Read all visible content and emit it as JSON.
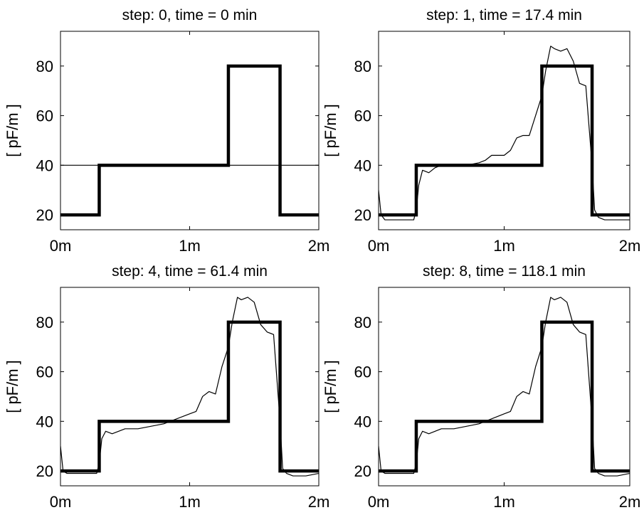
{
  "chart_data": [
    {
      "type": "line",
      "title": "step: 0, time = 0 min",
      "ylabel": "[ pF/m ]",
      "xlabel": "",
      "xlim": [
        0,
        2
      ],
      "ylim": [
        14,
        94
      ],
      "x_ticks": [
        0,
        1,
        2
      ],
      "x_tick_labels": [
        "0m",
        "1m",
        "2m"
      ],
      "y_ticks": [
        20,
        40,
        60,
        80
      ],
      "y_tick_labels": [
        "20",
        "40",
        "60",
        "80"
      ],
      "grid": false,
      "series": [
        {
          "style": "thick",
          "x": [
            0,
            0.3,
            0.3,
            1.3,
            1.3,
            1.7,
            1.7,
            2.0
          ],
          "y": [
            20,
            20,
            40,
            40,
            80,
            80,
            20,
            20
          ]
        },
        {
          "style": "thin",
          "x": [
            0,
            2.0
          ],
          "y": [
            40,
            40
          ]
        }
      ]
    },
    {
      "type": "line",
      "title": "step: 1, time = 17.4 min",
      "ylabel": "[ pF/m ]",
      "xlabel": "",
      "xlim": [
        0,
        2
      ],
      "ylim": [
        14,
        94
      ],
      "x_ticks": [
        0,
        1,
        2
      ],
      "x_tick_labels": [
        "0m",
        "1m",
        "2m"
      ],
      "y_ticks": [
        20,
        40,
        60,
        80
      ],
      "y_tick_labels": [
        "20",
        "40",
        "60",
        "80"
      ],
      "grid": false,
      "series": [
        {
          "style": "thick",
          "x": [
            0,
            0.3,
            0.3,
            1.3,
            1.3,
            1.7,
            1.7,
            2.0
          ],
          "y": [
            20,
            20,
            40,
            40,
            80,
            80,
            20,
            20
          ]
        },
        {
          "style": "thin",
          "x": [
            0,
            0.02,
            0.05,
            0.1,
            0.2,
            0.28,
            0.3,
            0.32,
            0.35,
            0.4,
            0.45,
            0.5,
            0.6,
            0.7,
            0.8,
            0.85,
            0.9,
            0.95,
            1.0,
            1.05,
            1.1,
            1.15,
            1.2,
            1.25,
            1.3,
            1.33,
            1.37,
            1.4,
            1.45,
            1.5,
            1.55,
            1.6,
            1.65,
            1.7,
            1.72,
            1.75,
            1.8,
            1.9,
            2.0
          ],
          "y": [
            30,
            20,
            18,
            18,
            18,
            18,
            22,
            32,
            38,
            37,
            39,
            40,
            40,
            40,
            41,
            42,
            44,
            44,
            44,
            46,
            51,
            52,
            52,
            60,
            68,
            78,
            88,
            87,
            86,
            87,
            82,
            73,
            72,
            40,
            22,
            19,
            18,
            18,
            18
          ]
        }
      ]
    },
    {
      "type": "line",
      "title": "step: 4, time = 61.4 min",
      "ylabel": "[ pF/m ]",
      "xlabel": "",
      "xlim": [
        0,
        2
      ],
      "ylim": [
        14,
        94
      ],
      "x_ticks": [
        0,
        1,
        2
      ],
      "x_tick_labels": [
        "0m",
        "1m",
        "2m"
      ],
      "y_ticks": [
        20,
        40,
        60,
        80
      ],
      "y_tick_labels": [
        "20",
        "40",
        "60",
        "80"
      ],
      "grid": false,
      "series": [
        {
          "style": "thick",
          "x": [
            0,
            0.3,
            0.3,
            1.3,
            1.3,
            1.7,
            1.7,
            2.0
          ],
          "y": [
            20,
            20,
            40,
            40,
            80,
            80,
            20,
            20
          ]
        },
        {
          "style": "thin",
          "x": [
            0,
            0.02,
            0.05,
            0.1,
            0.2,
            0.28,
            0.3,
            0.32,
            0.35,
            0.4,
            0.45,
            0.5,
            0.6,
            0.7,
            0.8,
            0.85,
            0.9,
            0.95,
            1.0,
            1.05,
            1.1,
            1.15,
            1.2,
            1.25,
            1.3,
            1.33,
            1.37,
            1.4,
            1.45,
            1.5,
            1.55,
            1.6,
            1.65,
            1.7,
            1.72,
            1.75,
            1.8,
            1.9,
            2.0
          ],
          "y": [
            30,
            20,
            19,
            19,
            19,
            19,
            23,
            33,
            36,
            35,
            36,
            37,
            37,
            38,
            39,
            40,
            41,
            42,
            43,
            44,
            50,
            52,
            51,
            62,
            70,
            80,
            90,
            89,
            90,
            88,
            79,
            76,
            75,
            40,
            21,
            19,
            18,
            18,
            19
          ]
        }
      ]
    },
    {
      "type": "line",
      "title": "step: 8, time = 118.1 min",
      "ylabel": "[ pF/m ]",
      "xlabel": "",
      "xlim": [
        0,
        2
      ],
      "ylim": [
        14,
        94
      ],
      "x_ticks": [
        0,
        1,
        2
      ],
      "x_tick_labels": [
        "0m",
        "1m",
        "2m"
      ],
      "y_ticks": [
        20,
        40,
        60,
        80
      ],
      "y_tick_labels": [
        "20",
        "40",
        "60",
        "80"
      ],
      "grid": false,
      "series": [
        {
          "style": "thick",
          "x": [
            0,
            0.3,
            0.3,
            1.3,
            1.3,
            1.7,
            1.7,
            2.0
          ],
          "y": [
            20,
            20,
            40,
            40,
            80,
            80,
            20,
            20
          ]
        },
        {
          "style": "thin",
          "x": [
            0,
            0.02,
            0.05,
            0.1,
            0.2,
            0.28,
            0.3,
            0.32,
            0.35,
            0.4,
            0.45,
            0.5,
            0.6,
            0.7,
            0.8,
            0.85,
            0.9,
            0.95,
            1.0,
            1.05,
            1.1,
            1.15,
            1.2,
            1.25,
            1.3,
            1.33,
            1.37,
            1.4,
            1.45,
            1.5,
            1.55,
            1.6,
            1.65,
            1.7,
            1.72,
            1.75,
            1.8,
            1.9,
            2.0
          ],
          "y": [
            30,
            20,
            19,
            19,
            19,
            19,
            23,
            33,
            36,
            35,
            36,
            37,
            37,
            38,
            39,
            40,
            41,
            42,
            43,
            44,
            50,
            52,
            51,
            62,
            70,
            80,
            90,
            89,
            90,
            88,
            79,
            76,
            75,
            40,
            21,
            19,
            18,
            18,
            19
          ]
        }
      ]
    }
  ]
}
